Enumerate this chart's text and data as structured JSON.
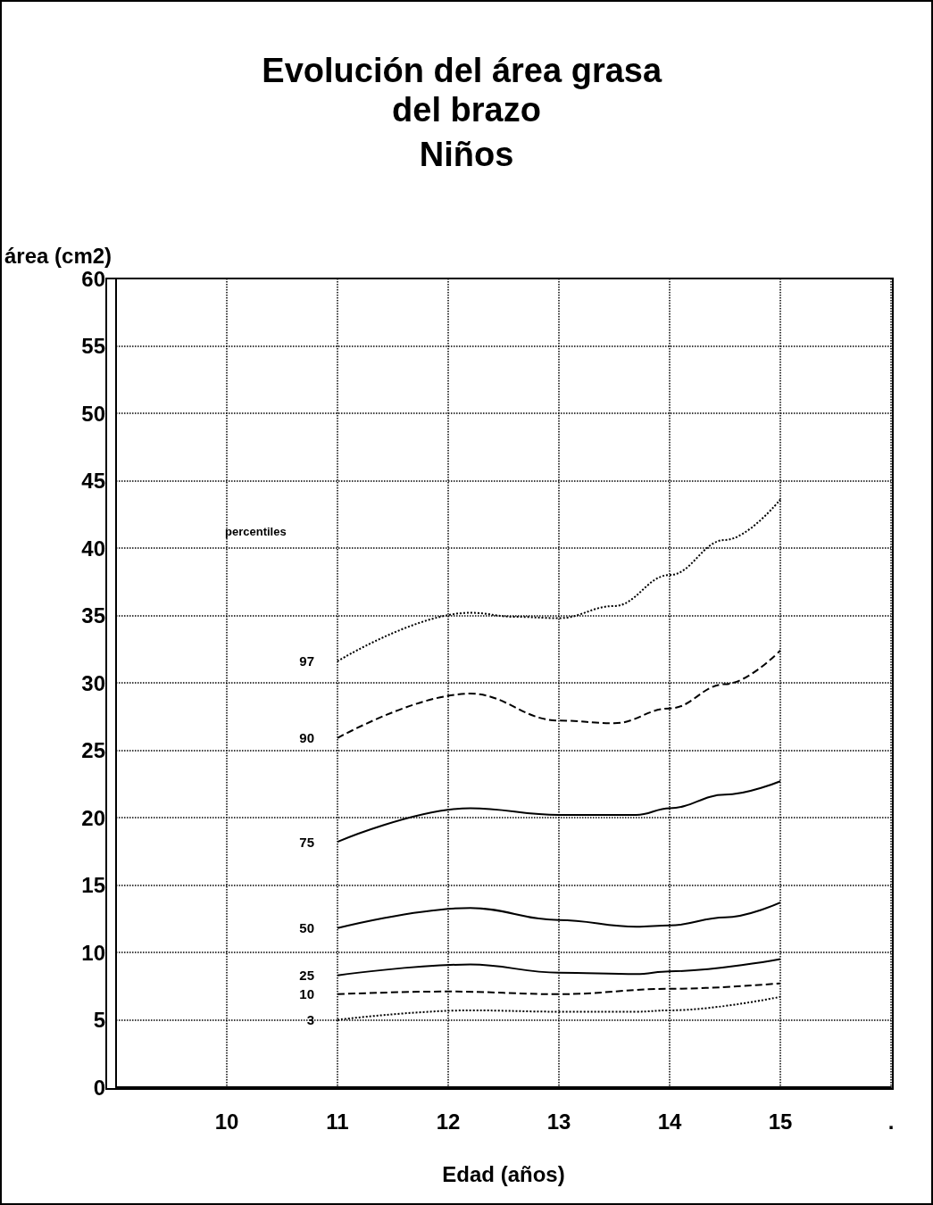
{
  "chart_data": {
    "type": "line",
    "title": "Evolución del área grasa del brazo",
    "subtitle": "Niños",
    "xlabel": "Edad (años)",
    "ylabel": "área (cm2)",
    "annotations": [
      "percentiles"
    ],
    "xlim": [
      9,
      16
    ],
    "xticks": [
      10,
      11,
      12,
      13,
      14,
      15,
      {
        "value": 16,
        "label": "."
      }
    ],
    "ylim": [
      0,
      60
    ],
    "yticks": [
      0,
      5,
      10,
      15,
      20,
      25,
      30,
      35,
      40,
      45,
      50,
      55,
      60
    ],
    "grid": true,
    "series": [
      {
        "name": "97",
        "color": "#000000",
        "line_style": "dotted",
        "x": [
          11,
          12.2,
          12.6,
          13,
          13.5,
          14,
          14.5,
          15
        ],
        "values": [
          31.6,
          35.2,
          34.9,
          34.8,
          35.7,
          38.0,
          40.6,
          43.6
        ]
      },
      {
        "name": "90",
        "color": "#000000",
        "line_style": "dashed",
        "x": [
          11,
          12.2,
          13,
          13.5,
          14,
          14.5,
          15
        ],
        "values": [
          25.9,
          29.2,
          27.2,
          27.0,
          28.1,
          29.9,
          32.4
        ]
      },
      {
        "name": "75",
        "color": "#000000",
        "line_style": "solid",
        "x": [
          11,
          12.2,
          13,
          13.7,
          14,
          14.5,
          15
        ],
        "values": [
          18.2,
          20.7,
          20.2,
          20.2,
          20.7,
          21.7,
          22.7
        ]
      },
      {
        "name": "50",
        "color": "#000000",
        "line_style": "solid",
        "x": [
          11,
          12.2,
          13,
          13.7,
          14,
          14.5,
          15
        ],
        "values": [
          11.8,
          13.3,
          12.4,
          11.9,
          12.0,
          12.6,
          13.7
        ]
      },
      {
        "name": "25",
        "color": "#000000",
        "line_style": "solid",
        "x": [
          11,
          12.2,
          13,
          13.7,
          14,
          15
        ],
        "values": [
          8.3,
          9.1,
          8.5,
          8.4,
          8.6,
          9.5
        ]
      },
      {
        "name": "10",
        "color": "#000000",
        "line_style": "dashed",
        "x": [
          11,
          12,
          13,
          14,
          15
        ],
        "values": [
          6.9,
          7.1,
          6.9,
          7.3,
          7.7
        ]
      },
      {
        "name": "3",
        "color": "#000000",
        "line_style": "dotted",
        "x": [
          11,
          12.2,
          13,
          13.7,
          14,
          15
        ],
        "values": [
          5.0,
          5.7,
          5.6,
          5.6,
          5.7,
          6.7
        ]
      }
    ]
  }
}
